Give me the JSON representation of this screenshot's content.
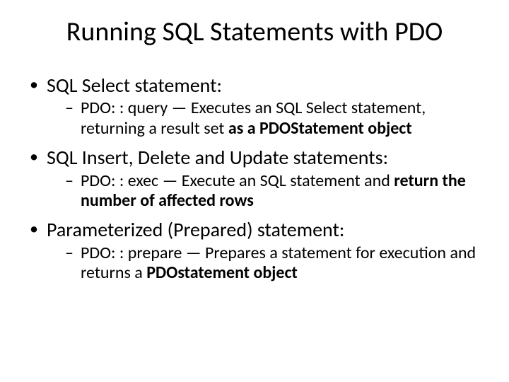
{
  "title": "Running SQL Statements with PDO",
  "bullets": [
    {
      "text": "SQL Select statement:",
      "sub": {
        "prefix": "PDO: : query — Executes an SQL Select statement, returning a result set ",
        "bold": "as a PDOStatement object"
      }
    },
    {
      "text": "SQL Insert, Delete and Update statements:",
      "sub": {
        "prefix": "PDO: : exec — Execute an SQL statement and ",
        "bold": "return the number of affected rows"
      }
    },
    {
      "text": "Parameterized (Prepared) statement:",
      "sub": {
        "prefix": "PDO: : prepare — Prepares a statement for execution and returns a ",
        "bold": "PDOstatement object"
      }
    }
  ],
  "colors": {
    "background": "#ffffff",
    "text": "#000000"
  },
  "typography": {
    "title_fontsize": 38,
    "bullet_fontsize": 28,
    "sub_fontsize": 24,
    "font_family": "Calibri"
  }
}
